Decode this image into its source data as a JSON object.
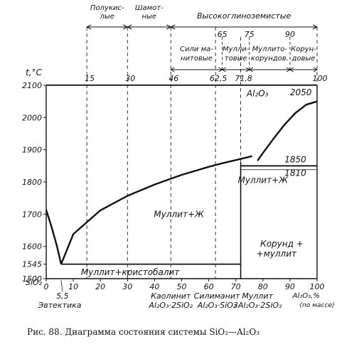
{
  "chart_data": {
    "type": "line",
    "xlim": [
      0,
      100
    ],
    "ylim": [
      1500,
      2100
    ],
    "x_ticks": [
      0,
      10,
      20,
      30,
      40,
      50,
      60,
      70,
      80,
      90,
      100
    ],
    "y_ticks": [
      1500,
      1600,
      1700,
      1800,
      1900,
      2000,
      2100
    ],
    "y_axis_bottom_label": "SiO₂",
    "y_axis_unit": "t,°C",
    "y_extra_label": "1545",
    "x_unit_label": "Al₂O₃,%",
    "x_unit_label_2": "(по массе)",
    "top_scale_ticks": [
      {
        "x": 15,
        "label": "15"
      },
      {
        "x": 30,
        "label": "30"
      },
      {
        "x": 46,
        "label": "46"
      },
      {
        "x": 62.5,
        "label": "62,5"
      },
      {
        "x": 71.8,
        "label": "71,8"
      },
      {
        "x": 100,
        "label": "100"
      }
    ],
    "top_scale_ticks_2": [
      {
        "x": 65,
        "label": "65"
      },
      {
        "x": 75,
        "label": "75"
      },
      {
        "x": 90,
        "label": "90"
      }
    ],
    "refractory_groups": [
      {
        "label": "Полукис-",
        "label2": "лые",
        "x_from": 15,
        "x_to": 30
      },
      {
        "label": "Шамот-",
        "label2": "ные",
        "x_from": 30,
        "x_to": 46
      },
      {
        "label": "Высокоглиноземистые",
        "label2": "",
        "x_from": 46,
        "x_to": 100
      }
    ],
    "high_alumina_subgroups": [
      {
        "label": "Сили ма-",
        "label2": "нитовые",
        "x_from": 46,
        "x_to": 65
      },
      {
        "label": "Мулли-",
        "label2": "товые",
        "x_from": 65,
        "x_to": 75
      },
      {
        "label": "Муллито-",
        "label2": "корундов.",
        "x_from": 75,
        "x_to": 90
      },
      {
        "label": "Корун-",
        "label2": "довые",
        "x_from": 90,
        "x_to": 100
      }
    ],
    "series": [
      {
        "points": [
          [
            0,
            1713
          ],
          [
            2,
            1660
          ],
          [
            4,
            1600
          ],
          [
            5.5,
            1545
          ]
        ]
      },
      {
        "points": [
          [
            5.5,
            1545
          ],
          [
            10,
            1638
          ],
          [
            20,
            1712
          ],
          [
            30,
            1757
          ],
          [
            40,
            1792
          ],
          [
            50,
            1822
          ],
          [
            60,
            1847
          ],
          [
            65,
            1858
          ],
          [
            70,
            1868
          ],
          [
            76,
            1880
          ]
        ]
      },
      {
        "points": [
          [
            78,
            1866
          ],
          [
            80,
            1890
          ],
          [
            84,
            1935
          ],
          [
            88,
            1978
          ],
          [
            92,
            2014
          ],
          [
            96,
            2040
          ],
          [
            100,
            2050
          ]
        ]
      }
    ],
    "horizontal_lines": [
      {
        "y": 1545,
        "x_from": 5.5,
        "x_to": 71.8
      },
      {
        "y": 1850,
        "x_from": 71.8,
        "x_to": 100
      }
    ],
    "vertical_lines_solid": [
      {
        "x": 71.8,
        "y_from": 1500,
        "y_to": 1862
      }
    ],
    "vertical_lines_dashed": [
      15,
      30,
      46,
      62.5
    ],
    "annotations": [
      {
        "text": "Al₂O₃",
        "x": 78,
        "y": 2075
      },
      {
        "text": "2050",
        "x": 94,
        "y": 2078
      },
      {
        "text": "1850",
        "x": 92,
        "y": 1870
      },
      {
        "text": "1810",
        "x": 92,
        "y": 1828
      },
      {
        "text": "Муллит+Ж",
        "x": 80,
        "y": 1805
      },
      {
        "text": "Муллит+Ж",
        "x": 49,
        "y": 1700
      },
      {
        "text": "Корунд +",
        "x": 87,
        "y": 1608
      },
      {
        "text": "+муллит",
        "x": 85,
        "y": 1577
      },
      {
        "text": "Муллит+кристобалит",
        "x": 31,
        "y": 1520
      }
    ],
    "below_axis_labels": [
      {
        "text": "5,5",
        "x": 6,
        "line": 1
      },
      {
        "text": "Эвтектика",
        "x": 5,
        "line": 2
      },
      {
        "text": "Каолинит",
        "x": 46,
        "line": 1
      },
      {
        "text": "Al₂O₃·2SiO₂",
        "x": 46,
        "line": 2
      },
      {
        "text": "Силиманит",
        "x": 63,
        "line": 1
      },
      {
        "text": "Al₂O₃·SiO₂",
        "x": 63,
        "line": 2
      },
      {
        "text": "Муллит",
        "x": 78,
        "line": 1
      },
      {
        "text": "3Al₂O₃·2SiO₂",
        "x": 78,
        "line": 2
      }
    ]
  },
  "caption": "Рис. 88. Диаграмма состояния системы SiO₂—Al₂O₃"
}
